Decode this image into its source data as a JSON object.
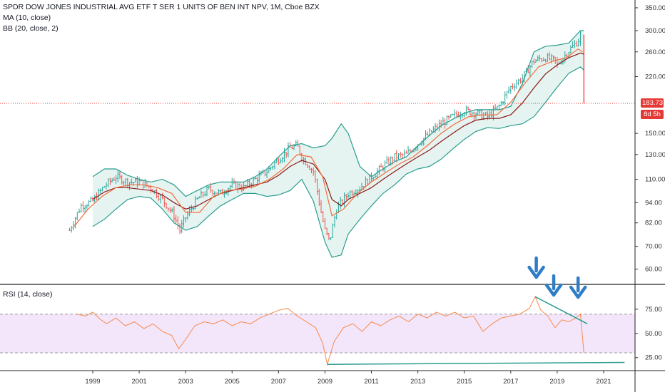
{
  "legend": {
    "title": "SPDR DOW JONES INDUSTRIAL AVG ETF T SER 1 UNITS OF BEN INT NPV, 1M, Cboe BZX",
    "ma": "MA (10, close)",
    "bb": "BB (20, close, 2)",
    "rsi": "RSI (14, close)"
  },
  "tags": {
    "price": "183.73",
    "countdown": "8d 5h"
  },
  "colors": {
    "up": "#26a69a",
    "down": "#ef5350",
    "ma": "#f26d3d",
    "bb_basis": "#8b1a1a",
    "bb_band": "#2a9d8f",
    "bb_fill": "#e6f4f1",
    "rsi_line": "#f7894a",
    "rsi_fill": "#f3e6fb",
    "trendline": "#2a9d8f",
    "arrow": "#2e7dc7",
    "price_line": "#e53935"
  },
  "chart_data": [
    {
      "type": "candlestick",
      "xlabel": "",
      "ylabel": "",
      "x_ticks": [
        "1999",
        "2001",
        "2003",
        "2005",
        "2007",
        "2009",
        "2011",
        "2013",
        "2015",
        "2017",
        "2019",
        "2021"
      ],
      "y_ticks": [
        60,
        70,
        82,
        94,
        110,
        130,
        150,
        183.73,
        220,
        260,
        300,
        350
      ],
      "ylim": [
        56,
        355
      ],
      "log_scale": true,
      "last_price": 183.73,
      "close_series": {
        "x": [
          1998.0,
          1998.5,
          1999.0,
          1999.5,
          2000.0,
          2000.5,
          2001.0,
          2001.5,
          2002.0,
          2002.5,
          2002.75,
          2003.0,
          2003.5,
          2004.0,
          2004.5,
          2005.0,
          2005.5,
          2006.0,
          2006.5,
          2007.0,
          2007.5,
          2007.8,
          2008.0,
          2008.5,
          2008.8,
          2009.0,
          2009.2,
          2009.5,
          2010.0,
          2010.5,
          2011.0,
          2011.5,
          2012.0,
          2012.5,
          2013.0,
          2013.5,
          2014.0,
          2014.5,
          2015.0,
          2015.5,
          2016.0,
          2016.5,
          2017.0,
          2017.5,
          2018.0,
          2018.5,
          2018.9,
          2019.0,
          2019.5,
          2019.9,
          2020.0,
          2020.15
        ],
        "values": [
          78,
          92,
          95,
          105,
          112,
          108,
          108,
          104,
          96,
          86,
          78,
          85,
          96,
          103,
          100,
          106,
          104,
          110,
          116,
          126,
          136,
          138,
          128,
          116,
          90,
          78,
          72,
          90,
          100,
          104,
          112,
          120,
          128,
          130,
          140,
          150,
          160,
          168,
          175,
          172,
          168,
          180,
          205,
          218,
          245,
          250,
          245,
          238,
          262,
          280,
          292,
          183.73
        ]
      },
      "ma": {
        "x": [
          1998.2,
          1998.8,
          1999.4,
          2000.0,
          2000.6,
          2001.2,
          2001.8,
          2002.4,
          2003.0,
          2003.6,
          2004.2,
          2004.8,
          2005.4,
          2006.0,
          2006.6,
          2007.2,
          2007.8,
          2008.4,
          2008.9,
          2009.3,
          2009.8,
          2010.4,
          2011.0,
          2011.6,
          2012.2,
          2012.8,
          2013.4,
          2014.0,
          2014.6,
          2015.2,
          2015.8,
          2016.4,
          2017.0,
          2017.6,
          2018.2,
          2018.8,
          2019.4,
          2019.9,
          2020.1
        ],
        "values": [
          80,
          90,
          98,
          104,
          106,
          106,
          104,
          100,
          88,
          88,
          98,
          102,
          103,
          105,
          110,
          118,
          130,
          128,
          112,
          86,
          90,
          100,
          108,
          115,
          122,
          128,
          138,
          150,
          160,
          168,
          170,
          170,
          185,
          210,
          235,
          244,
          250,
          265,
          260
        ]
      },
      "bb_basis": {
        "x": [
          1999.0,
          1999.5,
          2000.0,
          2000.5,
          2001.0,
          2001.5,
          2002.0,
          2002.5,
          2003.0,
          2003.5,
          2004.0,
          2004.5,
          2005.0,
          2005.5,
          2006.0,
          2006.5,
          2007.0,
          2007.5,
          2008.0,
          2008.5,
          2009.0,
          2009.3,
          2009.7,
          2010.0,
          2010.5,
          2011.0,
          2011.5,
          2012.0,
          2012.5,
          2013.0,
          2013.5,
          2014.0,
          2014.5,
          2015.0,
          2015.5,
          2016.0,
          2016.5,
          2017.0,
          2017.5,
          2018.0,
          2018.5,
          2019.0,
          2019.5,
          2020.0,
          2020.15
        ],
        "values": [
          96,
          101,
          104,
          104,
          103,
          102,
          99,
          94,
          90,
          92,
          96,
          100,
          102,
          104,
          106,
          108,
          113,
          120,
          125,
          122,
          110,
          96,
          92,
          96,
          100,
          104,
          110,
          116,
          122,
          128,
          134,
          142,
          150,
          158,
          164,
          166,
          166,
          170,
          184,
          204,
          224,
          238,
          250,
          258,
          256
        ]
      },
      "bb_upper": {
        "x": [
          1999.0,
          1999.5,
          2000.0,
          2000.5,
          2001.0,
          2001.5,
          2002.0,
          2002.5,
          2003.0,
          2003.5,
          2004.0,
          2004.5,
          2005.0,
          2005.5,
          2006.0,
          2006.5,
          2007.0,
          2007.5,
          2008.0,
          2008.5,
          2009.0,
          2009.3,
          2009.7,
          2010.0,
          2010.5,
          2011.0,
          2011.5,
          2012.0,
          2012.5,
          2013.0,
          2013.5,
          2014.0,
          2014.5,
          2015.0,
          2015.5,
          2016.0,
          2016.5,
          2017.0,
          2017.5,
          2018.0,
          2018.5,
          2019.0,
          2019.5,
          2020.0,
          2020.15
        ],
        "values": [
          112,
          118,
          118,
          113,
          110,
          108,
          110,
          106,
          98,
          102,
          106,
          108,
          108,
          108,
          112,
          118,
          128,
          138,
          140,
          136,
          138,
          145,
          160,
          150,
          120,
          112,
          118,
          124,
          128,
          138,
          148,
          158,
          165,
          172,
          176,
          176,
          176,
          180,
          210,
          260,
          270,
          272,
          276,
          300,
          300
        ]
      },
      "bb_lower": {
        "x": [
          1999.0,
          1999.5,
          2000.0,
          2000.5,
          2001.0,
          2001.5,
          2002.0,
          2002.5,
          2003.0,
          2003.5,
          2004.0,
          2004.5,
          2005.0,
          2005.5,
          2006.0,
          2006.5,
          2007.0,
          2007.5,
          2008.0,
          2008.5,
          2009.0,
          2009.3,
          2009.7,
          2010.0,
          2010.5,
          2011.0,
          2011.5,
          2012.0,
          2012.5,
          2013.0,
          2013.5,
          2014.0,
          2014.5,
          2015.0,
          2015.5,
          2016.0,
          2016.5,
          2017.0,
          2017.5,
          2018.0,
          2018.5,
          2019.0,
          2019.5,
          2020.0,
          2020.15
        ],
        "values": [
          80,
          84,
          90,
          96,
          98,
          97,
          90,
          82,
          78,
          80,
          86,
          92,
          96,
          100,
          100,
          98,
          99,
          102,
          110,
          95,
          72,
          65,
          66,
          76,
          84,
          92,
          100,
          106,
          114,
          118,
          120,
          126,
          135,
          144,
          152,
          156,
          155,
          158,
          160,
          168,
          185,
          205,
          225,
          235,
          230
        ]
      }
    },
    {
      "type": "line",
      "name": "RSI",
      "ylim": [
        13,
        100
      ],
      "y_ticks": [
        25,
        50,
        75
      ],
      "band": [
        30,
        70
      ],
      "x": [
        1998.3,
        1998.7,
        1999.0,
        1999.3,
        1999.6,
        2000.0,
        2000.4,
        2000.8,
        2001.2,
        2001.6,
        2002.0,
        2002.4,
        2002.7,
        2003.0,
        2003.4,
        2003.8,
        2004.2,
        2004.6,
        2005.0,
        2005.4,
        2005.8,
        2006.2,
        2006.6,
        2007.0,
        2007.4,
        2007.8,
        2008.2,
        2008.6,
        2008.9,
        2009.1,
        2009.4,
        2009.8,
        2010.2,
        2010.6,
        2011.0,
        2011.4,
        2011.8,
        2012.2,
        2012.6,
        2013.0,
        2013.4,
        2013.8,
        2014.2,
        2014.6,
        2015.0,
        2015.4,
        2015.8,
        2016.2,
        2016.6,
        2017.0,
        2017.4,
        2017.8,
        2018.05,
        2018.3,
        2018.6,
        2018.9,
        2019.2,
        2019.5,
        2019.8,
        2020.0,
        2020.15
      ],
      "values": [
        70,
        68,
        72,
        65,
        60,
        66,
        58,
        62,
        55,
        60,
        52,
        48,
        34,
        44,
        58,
        62,
        60,
        64,
        58,
        62,
        60,
        66,
        70,
        74,
        76,
        68,
        62,
        56,
        40,
        18,
        42,
        56,
        60,
        52,
        62,
        58,
        64,
        68,
        62,
        70,
        66,
        72,
        68,
        72,
        66,
        68,
        52,
        60,
        66,
        68,
        70,
        76,
        88,
        74,
        68,
        56,
        64,
        62,
        66,
        70,
        30
      ]
    }
  ],
  "annotations": {
    "rsi_trendline_top": {
      "x": [
        2018.05,
        2020.3
      ],
      "values": [
        88,
        60
      ]
    },
    "rsi_trendline_bottom": {
      "x": [
        2009.1,
        2021.9
      ],
      "values": [
        18,
        20
      ]
    },
    "arrows_at": [
      2018.1,
      2018.85,
      2019.9
    ]
  }
}
